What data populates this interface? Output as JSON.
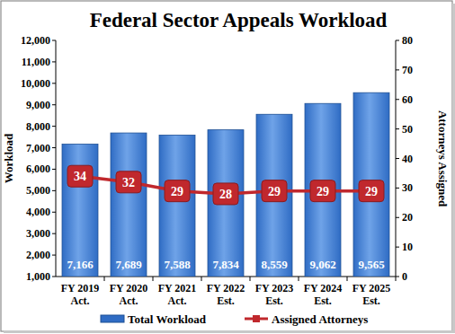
{
  "chart_data": {
    "type": "bar",
    "title": "Federal Sector Appeals Workload",
    "ylabel": "Workload",
    "y2label": "Attorneys Assigned",
    "categories": [
      "FY 2019 Act.",
      "FY 2020 Act.",
      "FY 2021 Act.",
      "FY 2022 Est.",
      "FY 2023 Est.",
      "FY 2024 Est.",
      "FY 2025 Est."
    ],
    "series": [
      {
        "name": "Total Workload",
        "type": "bar",
        "color": "#2f6cc4",
        "values": [
          7166,
          7689,
          7588,
          7834,
          8559,
          9062,
          9565
        ],
        "value_labels": [
          "7,166",
          "7,689",
          "7,588",
          "7,834",
          "8,559",
          "9,062",
          "9,565"
        ]
      },
      {
        "name": "Assigned Attorneys",
        "type": "line",
        "axis": "y2",
        "color": "#c0282d",
        "marker": "square",
        "values": [
          34,
          32,
          29,
          28,
          29,
          29,
          29
        ]
      }
    ],
    "ylim": [
      1000,
      12000
    ],
    "yticks": [
      {
        "value": 1000,
        "label": "1,000"
      },
      {
        "value": 2000,
        "label": "2,000"
      },
      {
        "value": 3000,
        "label": "3,000"
      },
      {
        "value": 4000,
        "label": "4,000"
      },
      {
        "value": 5000,
        "label": "5,000"
      },
      {
        "value": 6000,
        "label": "6,000"
      },
      {
        "value": 7000,
        "label": "7,000"
      },
      {
        "value": 8000,
        "label": "8,000"
      },
      {
        "value": 9000,
        "label": "9,000"
      },
      {
        "value": 10000,
        "label": "10,000"
      },
      {
        "value": 11000,
        "label": "11,000"
      },
      {
        "value": 12000,
        "label": "12,000"
      }
    ],
    "y2lim": [
      0,
      80
    ],
    "y2ticks": [
      0,
      10,
      20,
      30,
      40,
      50,
      60,
      70,
      80
    ],
    "grid": false,
    "legend": "bottom",
    "data_labels": true
  }
}
